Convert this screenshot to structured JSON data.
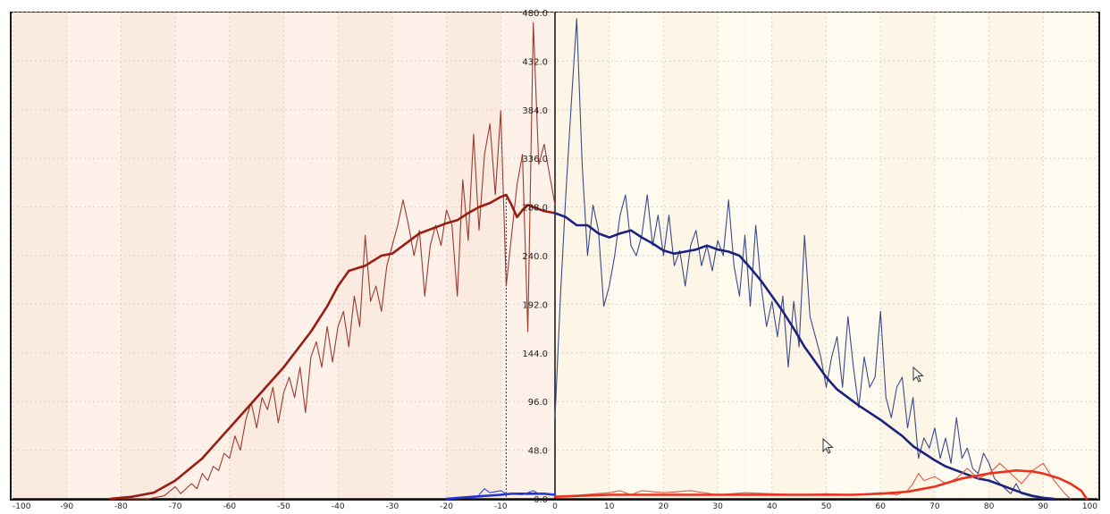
{
  "chart_data": {
    "type": "line",
    "x_range": [
      -100,
      100
    ],
    "y_range": [
      0,
      480
    ],
    "x_ticks": [
      -100,
      -90,
      -80,
      -70,
      -60,
      -50,
      -40,
      -30,
      -20,
      -10,
      0,
      10,
      20,
      30,
      40,
      50,
      60,
      70,
      80,
      90,
      100
    ],
    "y_ticks": [
      0,
      48,
      96,
      144,
      192,
      240,
      288,
      336,
      384,
      432,
      480
    ],
    "x_tick_labels": [
      "-100",
      "-90",
      "-80",
      "-70",
      "-60",
      "-50",
      "-40",
      "-30",
      "-20",
      "-10",
      "0",
      "10",
      "20",
      "30",
      "40",
      "50",
      "60",
      "70",
      "80",
      "90",
      "100"
    ],
    "y_tick_labels": [
      "0.0",
      "48.0",
      "96.0",
      "144.0",
      "192.0",
      "240.0",
      "288.0",
      "336.0",
      "384.0",
      "432.0",
      "480.0"
    ],
    "grid": true,
    "marker_x": -9,
    "series": [
      {
        "color": "#9b3b2e",
        "style": "thin",
        "points": [
          [
            -80,
            0
          ],
          [
            -75,
            0
          ],
          [
            -72,
            3
          ],
          [
            -70,
            12
          ],
          [
            -69,
            5
          ],
          [
            -67,
            15
          ],
          [
            -66,
            10
          ],
          [
            -65,
            25
          ],
          [
            -64,
            18
          ],
          [
            -63,
            32
          ],
          [
            -62,
            28
          ],
          [
            -61,
            45
          ],
          [
            -60,
            40
          ],
          [
            -59,
            62
          ],
          [
            -58,
            48
          ],
          [
            -57,
            78
          ],
          [
            -56,
            95
          ],
          [
            -55,
            70
          ],
          [
            -54,
            100
          ],
          [
            -53,
            88
          ],
          [
            -52,
            110
          ],
          [
            -51,
            75
          ],
          [
            -50,
            105
          ],
          [
            -49,
            120
          ],
          [
            -48,
            100
          ],
          [
            -47,
            130
          ],
          [
            -46,
            85
          ],
          [
            -45,
            140
          ],
          [
            -44,
            155
          ],
          [
            -43,
            130
          ],
          [
            -42,
            170
          ],
          [
            -41,
            135
          ],
          [
            -40,
            170
          ],
          [
            -39,
            185
          ],
          [
            -38,
            150
          ],
          [
            -37,
            200
          ],
          [
            -36,
            170
          ],
          [
            -35,
            260
          ],
          [
            -34,
            195
          ],
          [
            -33,
            210
          ],
          [
            -32,
            185
          ],
          [
            -31,
            230
          ],
          [
            -30,
            250
          ],
          [
            -29,
            270
          ],
          [
            -28,
            295
          ],
          [
            -27,
            270
          ],
          [
            -26,
            240
          ],
          [
            -25,
            265
          ],
          [
            -24,
            200
          ],
          [
            -23,
            250
          ],
          [
            -22,
            270
          ],
          [
            -21,
            250
          ],
          [
            -20,
            285
          ],
          [
            -19,
            270
          ],
          [
            -18,
            200
          ],
          [
            -17,
            315
          ],
          [
            -16,
            255
          ],
          [
            -15,
            360
          ],
          [
            -14,
            265
          ],
          [
            -13,
            340
          ],
          [
            -12,
            370
          ],
          [
            -11,
            300
          ],
          [
            -10,
            383
          ],
          [
            -9,
            210
          ],
          [
            -8,
            260
          ],
          [
            -7,
            310
          ],
          [
            -6,
            340
          ],
          [
            -5,
            165
          ],
          [
            -4,
            470
          ],
          [
            -3,
            330
          ],
          [
            -2,
            350
          ],
          [
            -1,
            320
          ],
          [
            0,
            290
          ]
        ]
      },
      {
        "color": "#9b1c12",
        "style": "thick",
        "points": [
          [
            -82,
            0
          ],
          [
            -78,
            2
          ],
          [
            -74,
            6
          ],
          [
            -70,
            18
          ],
          [
            -65,
            40
          ],
          [
            -60,
            70
          ],
          [
            -55,
            100
          ],
          [
            -50,
            130
          ],
          [
            -45,
            165
          ],
          [
            -42,
            190
          ],
          [
            -40,
            210
          ],
          [
            -38,
            225
          ],
          [
            -35,
            230
          ],
          [
            -32,
            240
          ],
          [
            -30,
            242
          ],
          [
            -28,
            250
          ],
          [
            -25,
            262
          ],
          [
            -22,
            268
          ],
          [
            -20,
            272
          ],
          [
            -18,
            275
          ],
          [
            -16,
            282
          ],
          [
            -14,
            288
          ],
          [
            -12,
            292
          ],
          [
            -10,
            298
          ],
          [
            -9,
            300
          ],
          [
            -8,
            290
          ],
          [
            -7,
            278
          ],
          [
            -6,
            285
          ],
          [
            -5,
            290
          ],
          [
            -4,
            288
          ],
          [
            -2,
            284
          ],
          [
            0,
            282
          ]
        ]
      },
      {
        "color": "#3b4a8a",
        "style": "thin",
        "points": [
          [
            0,
            80
          ],
          [
            1,
            200
          ],
          [
            2,
            300
          ],
          [
            3,
            390
          ],
          [
            4,
            474
          ],
          [
            5,
            330
          ],
          [
            6,
            240
          ],
          [
            7,
            290
          ],
          [
            8,
            265
          ],
          [
            9,
            190
          ],
          [
            10,
            210
          ],
          [
            11,
            240
          ],
          [
            12,
            280
          ],
          [
            13,
            300
          ],
          [
            14,
            250
          ],
          [
            15,
            240
          ],
          [
            16,
            260
          ],
          [
            17,
            300
          ],
          [
            18,
            250
          ],
          [
            19,
            280
          ],
          [
            20,
            240
          ],
          [
            21,
            280
          ],
          [
            22,
            230
          ],
          [
            23,
            245
          ],
          [
            24,
            210
          ],
          [
            25,
            250
          ],
          [
            26,
            265
          ],
          [
            27,
            230
          ],
          [
            28,
            250
          ],
          [
            29,
            225
          ],
          [
            30,
            255
          ],
          [
            31,
            240
          ],
          [
            32,
            295
          ],
          [
            33,
            230
          ],
          [
            34,
            200
          ],
          [
            35,
            260
          ],
          [
            36,
            190
          ],
          [
            37,
            270
          ],
          [
            38,
            210
          ],
          [
            39,
            170
          ],
          [
            40,
            195
          ],
          [
            41,
            160
          ],
          [
            42,
            200
          ],
          [
            43,
            130
          ],
          [
            44,
            195
          ],
          [
            45,
            150
          ],
          [
            46,
            260
          ],
          [
            47,
            180
          ],
          [
            48,
            160
          ],
          [
            49,
            140
          ],
          [
            50,
            110
          ],
          [
            51,
            140
          ],
          [
            52,
            160
          ],
          [
            53,
            110
          ],
          [
            54,
            180
          ],
          [
            55,
            130
          ],
          [
            56,
            90
          ],
          [
            57,
            140
          ],
          [
            58,
            110
          ],
          [
            59,
            120
          ],
          [
            60,
            185
          ],
          [
            61,
            100
          ],
          [
            62,
            80
          ],
          [
            63,
            110
          ],
          [
            64,
            120
          ],
          [
            65,
            70
          ],
          [
            66,
            100
          ],
          [
            67,
            40
          ],
          [
            68,
            60
          ],
          [
            69,
            50
          ],
          [
            70,
            70
          ],
          [
            71,
            40
          ],
          [
            72,
            60
          ],
          [
            73,
            35
          ],
          [
            74,
            80
          ],
          [
            75,
            40
          ],
          [
            76,
            50
          ],
          [
            77,
            30
          ],
          [
            78,
            25
          ],
          [
            79,
            45
          ],
          [
            80,
            35
          ],
          [
            81,
            20
          ],
          [
            82,
            15
          ],
          [
            83,
            10
          ],
          [
            84,
            5
          ],
          [
            85,
            15
          ],
          [
            86,
            5
          ],
          [
            88,
            2
          ],
          [
            90,
            0
          ]
        ]
      },
      {
        "color": "#1a237e",
        "style": "thick",
        "points": [
          [
            0,
            282
          ],
          [
            2,
            278
          ],
          [
            4,
            270
          ],
          [
            6,
            270
          ],
          [
            8,
            262
          ],
          [
            10,
            258
          ],
          [
            12,
            262
          ],
          [
            14,
            265
          ],
          [
            16,
            258
          ],
          [
            18,
            252
          ],
          [
            20,
            245
          ],
          [
            22,
            242
          ],
          [
            24,
            244
          ],
          [
            26,
            246
          ],
          [
            28,
            250
          ],
          [
            30,
            246
          ],
          [
            32,
            244
          ],
          [
            34,
            240
          ],
          [
            36,
            228
          ],
          [
            38,
            215
          ],
          [
            40,
            200
          ],
          [
            42,
            185
          ],
          [
            44,
            168
          ],
          [
            46,
            150
          ],
          [
            48,
            135
          ],
          [
            50,
            120
          ],
          [
            52,
            108
          ],
          [
            54,
            100
          ],
          [
            56,
            92
          ],
          [
            58,
            85
          ],
          [
            60,
            78
          ],
          [
            62,
            70
          ],
          [
            64,
            62
          ],
          [
            66,
            52
          ],
          [
            68,
            45
          ],
          [
            70,
            38
          ],
          [
            72,
            32
          ],
          [
            74,
            28
          ],
          [
            76,
            24
          ],
          [
            78,
            20
          ],
          [
            80,
            18
          ],
          [
            82,
            14
          ],
          [
            84,
            10
          ],
          [
            86,
            6
          ],
          [
            88,
            3
          ],
          [
            90,
            1
          ],
          [
            92,
            0
          ]
        ]
      },
      {
        "color": "#e05a4a",
        "style": "thin",
        "points": [
          [
            0,
            2
          ],
          [
            5,
            4
          ],
          [
            10,
            6
          ],
          [
            12,
            8
          ],
          [
            14,
            4
          ],
          [
            16,
            8
          ],
          [
            20,
            6
          ],
          [
            25,
            8
          ],
          [
            30,
            4
          ],
          [
            35,
            6
          ],
          [
            40,
            5
          ],
          [
            45,
            4
          ],
          [
            50,
            5
          ],
          [
            55,
            4
          ],
          [
            60,
            6
          ],
          [
            63,
            4
          ],
          [
            65,
            8
          ],
          [
            66,
            15
          ],
          [
            67,
            25
          ],
          [
            68,
            18
          ],
          [
            70,
            22
          ],
          [
            72,
            15
          ],
          [
            74,
            20
          ],
          [
            76,
            30
          ],
          [
            78,
            20
          ],
          [
            80,
            25
          ],
          [
            82,
            35
          ],
          [
            84,
            25
          ],
          [
            86,
            15
          ],
          [
            88,
            28
          ],
          [
            90,
            35
          ],
          [
            92,
            18
          ],
          [
            94,
            5
          ],
          [
            95,
            0
          ]
        ]
      },
      {
        "color": "#e8321e",
        "style": "thick",
        "points": [
          [
            0,
            2
          ],
          [
            5,
            3
          ],
          [
            10,
            4
          ],
          [
            15,
            4
          ],
          [
            20,
            4
          ],
          [
            25,
            4
          ],
          [
            30,
            4
          ],
          [
            35,
            4
          ],
          [
            40,
            4
          ],
          [
            45,
            4
          ],
          [
            50,
            4
          ],
          [
            55,
            4
          ],
          [
            60,
            5
          ],
          [
            65,
            7
          ],
          [
            70,
            12
          ],
          [
            75,
            20
          ],
          [
            80,
            25
          ],
          [
            85,
            28
          ],
          [
            88,
            27
          ],
          [
            90,
            25
          ],
          [
            93,
            20
          ],
          [
            95,
            15
          ],
          [
            97,
            8
          ],
          [
            98,
            0
          ]
        ]
      },
      {
        "color": "#2230d0",
        "style": "thick",
        "points": [
          [
            -20,
            0
          ],
          [
            -15,
            2
          ],
          [
            -10,
            4
          ],
          [
            -8,
            5
          ],
          [
            -5,
            5
          ],
          [
            -2,
            5
          ],
          [
            0,
            4
          ]
        ]
      },
      {
        "color": "#2a48e0",
        "style": "thin",
        "points": [
          [
            -14,
            4
          ],
          [
            -13,
            10
          ],
          [
            -12,
            6
          ],
          [
            -10,
            8
          ],
          [
            -9,
            5
          ],
          [
            -6,
            4
          ],
          [
            -4,
            8
          ],
          [
            -3,
            5
          ],
          [
            -1,
            5
          ],
          [
            0,
            4
          ]
        ]
      }
    ]
  }
}
